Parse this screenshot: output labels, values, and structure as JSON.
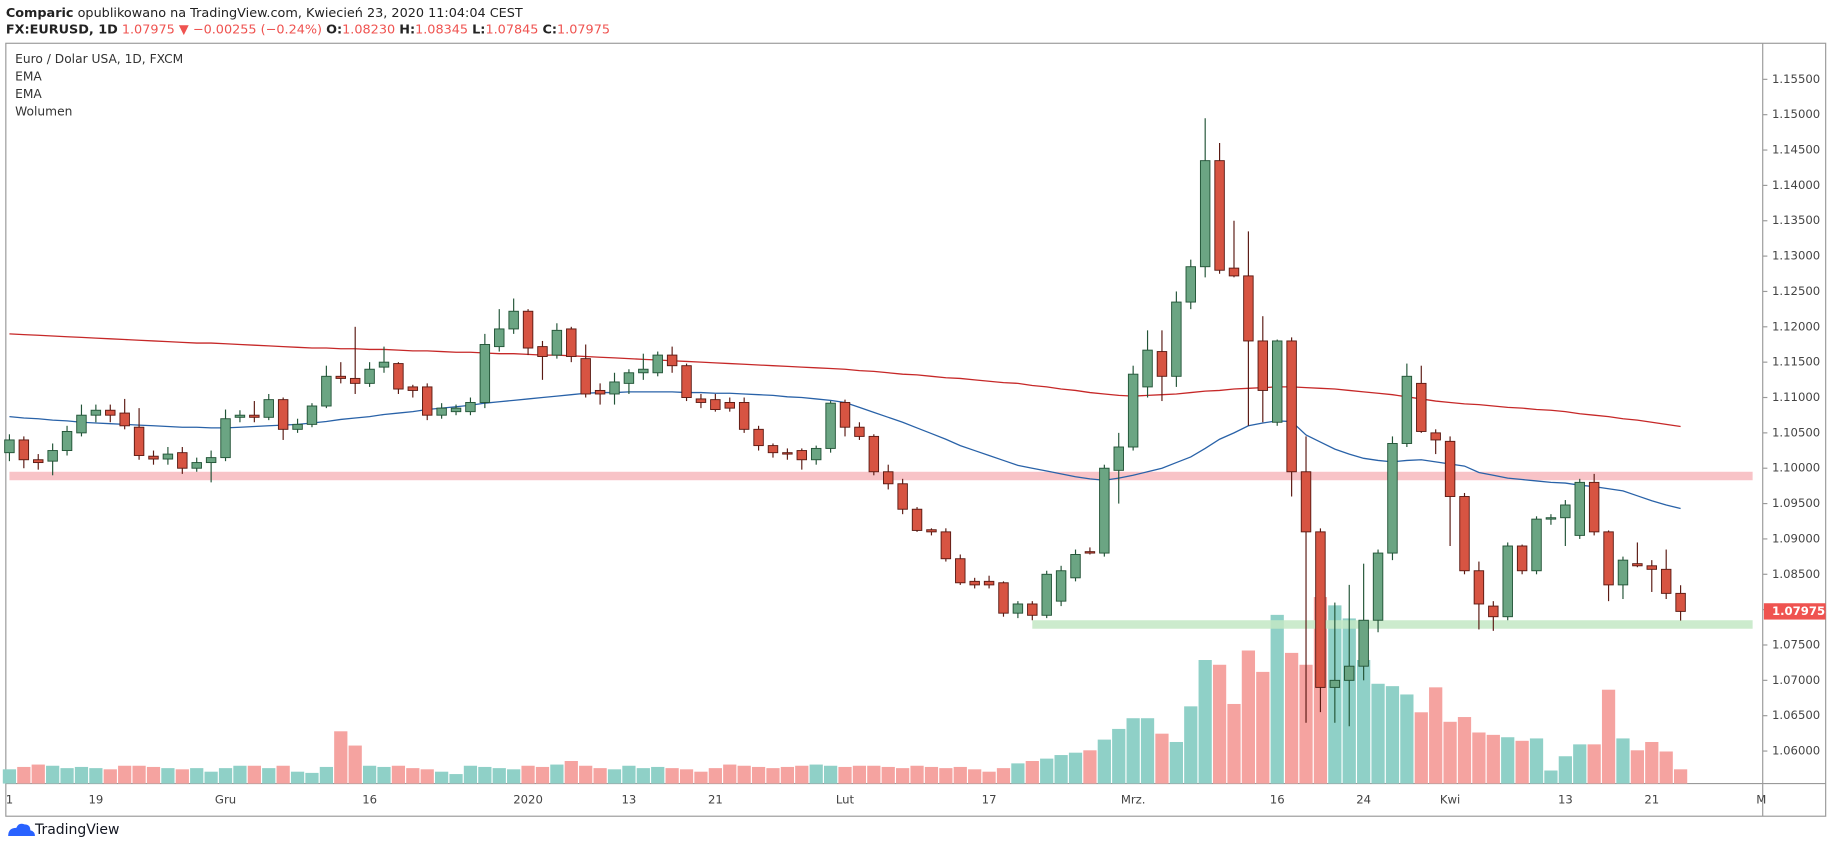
{
  "header": {
    "author": "Comparic",
    "published": "opublikowano na TradingView.com, Kwiecień 23, 2020 11:04:04 CEST",
    "symbol": "FX:EURUSD, 1D",
    "last": "1.07975",
    "arrow": "▼",
    "change": "−0.00255 (−0.24%)",
    "o_label": "O:",
    "o": "1.08230",
    "h_label": "H:",
    "h": "1.08345",
    "l_label": "L:",
    "l": "1.07845",
    "c_label": "C:",
    "c": "1.07975"
  },
  "footer": {
    "brand": "TradingView"
  },
  "chart_data": {
    "type": "candlestick",
    "title": "Euro / Dolar USA, 1D, FXCM",
    "volume_name": "Wolumen",
    "up_color": "#6ba583",
    "down_color": "#d75442",
    "up_border": "#225437",
    "down_border": "#5b1a13",
    "volume_up_color": "#8fd0c7",
    "volume_down_color": "#f5a3a0",
    "xlim": [
      -0.25,
      121.7
    ],
    "ylim": [
      1.0554,
      1.1601
    ],
    "xticks": [
      {
        "value": 0,
        "label": "1"
      },
      {
        "value": 6,
        "label": "19"
      },
      {
        "value": 15,
        "label": "Gru"
      },
      {
        "value": 25,
        "label": "16"
      },
      {
        "value": 36,
        "label": "2020"
      },
      {
        "value": 43,
        "label": "13"
      },
      {
        "value": 49,
        "label": "21"
      },
      {
        "value": 58,
        "label": "Lut"
      },
      {
        "value": 68,
        "label": "17"
      },
      {
        "value": 78,
        "label": "Mrz."
      },
      {
        "value": 88,
        "label": "16"
      },
      {
        "value": 94,
        "label": "24"
      },
      {
        "value": 100,
        "label": "Kwi"
      },
      {
        "value": 108,
        "label": "13"
      },
      {
        "value": 114,
        "label": "21"
      },
      {
        "value": 121.6,
        "label": "M"
      }
    ],
    "yticks": [
      {
        "value": 1.06,
        "label": "1.06000"
      },
      {
        "value": 1.065,
        "label": "1.06500"
      },
      {
        "value": 1.07,
        "label": "1.07000"
      },
      {
        "value": 1.075,
        "label": "1.07500"
      },
      {
        "value": 1.08,
        "label": "1.08000"
      },
      {
        "value": 1.085,
        "label": "1.08500"
      },
      {
        "value": 1.09,
        "label": "1.09000"
      },
      {
        "value": 1.095,
        "label": "1.09500"
      },
      {
        "value": 1.1,
        "label": "1.10000"
      },
      {
        "value": 1.105,
        "label": "1.10500"
      },
      {
        "value": 1.11,
        "label": "1.11000"
      },
      {
        "value": 1.115,
        "label": "1.11500"
      },
      {
        "value": 1.12,
        "label": "1.12000"
      },
      {
        "value": 1.125,
        "label": "1.12500"
      },
      {
        "value": 1.13,
        "label": "1.13000"
      },
      {
        "value": 1.135,
        "label": "1.13500"
      },
      {
        "value": 1.14,
        "label": "1.14000"
      },
      {
        "value": 1.145,
        "label": "1.14500"
      },
      {
        "value": 1.15,
        "label": "1.15000"
      },
      {
        "value": 1.155,
        "label": "1.15500"
      }
    ],
    "zones": [
      {
        "from": 1.0983,
        "to": 1.0995,
        "start": 0,
        "end": 121,
        "color": "#f7b9bd"
      },
      {
        "from": 1.0773,
        "to": 1.0785,
        "start": 71,
        "end": 121,
        "color": "#c3e8c4"
      }
    ],
    "open": [
      1.1022,
      1.104,
      1.1012,
      1.101,
      1.1025,
      1.105,
      1.1075,
      1.1082,
      1.1078,
      1.1058,
      1.1017,
      1.1013,
      1.1022,
      1.1,
      1.1008,
      1.1015,
      1.1072,
      1.1075,
      1.1072,
      1.1097,
      1.1055,
      1.1062,
      1.1088,
      1.113,
      1.1127,
      1.112,
      1.1143,
      1.1148,
      1.1115,
      1.1115,
      1.1075,
      1.108,
      1.108,
      1.1093,
      1.1172,
      1.1197,
      1.1222,
      1.1172,
      1.116,
      1.1197,
      1.1155,
      1.111,
      1.1105,
      1.112,
      1.1135,
      1.1135,
      1.116,
      1.1145,
      1.1098,
      1.1097,
      1.1093,
      1.1093,
      1.1055,
      1.1032,
      1.1022,
      1.1025,
      1.1012,
      1.1028,
      1.1093,
      1.1058,
      1.1045,
      1.0995,
      1.0978,
      1.0942,
      1.0913,
      1.091,
      1.0872,
      1.084,
      1.084,
      1.0838,
      1.0795,
      1.0808,
      1.0792,
      1.0812,
      1.0845,
      1.0882,
      1.088,
      1.0997,
      1.103,
      1.1115,
      1.1165,
      1.113,
      1.1235,
      1.1285,
      1.1435,
      1.1283,
      1.1272,
      1.118,
      1.1065,
      1.118,
      1.0995,
      1.091,
      1.069,
      1.07,
      1.072,
      1.0785,
      1.088,
      1.1035,
      1.112,
      1.105,
      1.1038,
      1.096,
      1.0855,
      1.0805,
      1.079,
      1.089,
      1.0855,
      1.0928,
      1.093,
      1.0905,
      1.098,
      1.091,
      1.0835,
      1.0865,
      1.0862,
      1.0857,
      1.0823
    ],
    "high": [
      1.1048,
      1.1045,
      1.102,
      1.1035,
      1.106,
      1.109,
      1.109,
      1.109,
      1.1098,
      1.1085,
      1.1025,
      1.103,
      1.103,
      1.1015,
      1.1025,
      1.1083,
      1.1082,
      1.1095,
      1.1105,
      1.11,
      1.107,
      1.1092,
      1.1145,
      1.115,
      1.12,
      1.115,
      1.1172,
      1.115,
      1.1118,
      1.112,
      1.1092,
      1.109,
      1.11,
      1.119,
      1.1225,
      1.124,
      1.1225,
      1.118,
      1.1205,
      1.12,
      1.1175,
      1.112,
      1.1135,
      1.114,
      1.1162,
      1.1165,
      1.1172,
      1.1148,
      1.1105,
      1.1105,
      1.11,
      1.11,
      1.106,
      1.1035,
      1.1028,
      1.1028,
      1.1032,
      1.1095,
      1.1097,
      1.1065,
      1.1048,
      1.1005,
      1.0985,
      1.0945,
      1.0915,
      1.0915,
      1.0878,
      1.0845,
      1.0848,
      1.084,
      1.0812,
      1.0812,
      1.0855,
      1.0862,
      1.0885,
      1.0888,
      1.1005,
      1.105,
      1.1145,
      1.1195,
      1.1195,
      1.125,
      1.1295,
      1.1495,
      1.146,
      1.135,
      1.1335,
      1.1215,
      1.1182,
      1.1185,
      1.1045,
      1.0915,
      1.081,
      1.0835,
      1.0865,
      1.0885,
      1.1045,
      1.1148,
      1.1145,
      1.1055,
      1.1045,
      1.0965,
      1.0868,
      1.0812,
      1.0895,
      1.0892,
      1.0932,
      1.0935,
      1.0955,
      1.0985,
      1.0992,
      1.0912,
      1.0875,
      1.0895,
      1.087,
      1.0885,
      1.08345
    ],
    "low": [
      1.101,
      1.1,
      1.0998,
      1.099,
      1.1018,
      1.1045,
      1.1065,
      1.1065,
      1.1055,
      1.1012,
      1.1005,
      1.1005,
      1.0992,
      1.0995,
      1.098,
      1.101,
      1.1065,
      1.1065,
      1.1068,
      1.104,
      1.105,
      1.1058,
      1.1085,
      1.112,
      1.1105,
      1.1115,
      1.1135,
      1.1105,
      1.11,
      1.1068,
      1.107,
      1.1075,
      1.1075,
      1.1085,
      1.1165,
      1.119,
      1.116,
      1.1125,
      1.1155,
      1.115,
      1.11,
      1.109,
      1.109,
      1.1105,
      1.1125,
      1.113,
      1.1135,
      1.1095,
      1.1085,
      1.108,
      1.108,
      1.105,
      1.1025,
      1.1015,
      1.1012,
      1.0998,
      1.1005,
      1.1022,
      1.1045,
      1.104,
      1.099,
      1.097,
      1.0935,
      1.091,
      1.0905,
      1.0868,
      1.0835,
      1.083,
      1.083,
      1.079,
      1.0788,
      1.0785,
      1.0788,
      1.0805,
      1.084,
      1.0878,
      1.0875,
      1.095,
      1.1025,
      1.11,
      1.1095,
      1.1115,
      1.1225,
      1.127,
      1.1275,
      1.127,
      1.106,
      1.1065,
      1.106,
      1.096,
      1.064,
      1.0655,
      1.064,
      1.0635,
      1.07,
      1.0768,
      1.087,
      1.103,
      1.105,
      1.102,
      1.089,
      1.085,
      1.0772,
      1.077,
      1.0785,
      1.085,
      1.085,
      1.092,
      1.089,
      1.09,
      1.0905,
      1.0812,
      1.0815,
      1.086,
      1.0825,
      1.0815,
      1.07845
    ],
    "close": [
      1.104,
      1.1012,
      1.1008,
      1.1025,
      1.1052,
      1.1075,
      1.1082,
      1.1075,
      1.106,
      1.1018,
      1.1013,
      1.102,
      1.1,
      1.1008,
      1.1015,
      1.107,
      1.1075,
      1.1072,
      1.1097,
      1.1055,
      1.1062,
      1.1088,
      1.113,
      1.1127,
      1.112,
      1.114,
      1.115,
      1.1112,
      1.111,
      1.1075,
      1.1085,
      1.1085,
      1.1093,
      1.1175,
      1.1197,
      1.1222,
      1.117,
      1.1158,
      1.1195,
      1.1158,
      1.1105,
      1.1105,
      1.1122,
      1.1135,
      1.114,
      1.116,
      1.1145,
      1.11,
      1.1093,
      1.1083,
      1.1085,
      1.1055,
      1.1032,
      1.1022,
      1.102,
      1.1012,
      1.1028,
      1.1092,
      1.1058,
      1.1045,
      1.0995,
      1.0978,
      1.0942,
      1.0912,
      1.091,
      1.0872,
      1.0838,
      1.0835,
      1.0835,
      1.0795,
      1.0808,
      1.0792,
      1.085,
      1.0855,
      1.0878,
      1.088,
      1.1,
      1.103,
      1.1133,
      1.1167,
      1.113,
      1.1235,
      1.1285,
      1.1435,
      1.128,
      1.1272,
      1.118,
      1.111,
      1.118,
      1.0995,
      1.091,
      1.069,
      1.07,
      1.072,
      1.0785,
      1.088,
      1.1035,
      1.113,
      1.1052,
      1.104,
      1.096,
      1.0855,
      1.0808,
      1.079,
      1.089,
      1.0855,
      1.0928,
      1.093,
      1.0948,
      1.098,
      1.091,
      1.0835,
      1.087,
      1.0862,
      1.0857,
      1.0823,
      1.07975
    ],
    "volume": [
      12,
      14,
      16,
      15,
      13,
      14,
      13,
      12,
      15,
      15,
      14,
      13,
      12,
      13,
      10,
      13,
      15,
      15,
      13,
      15,
      10,
      9,
      14,
      44,
      32,
      15,
      14,
      15,
      13,
      12,
      10,
      8,
      15,
      14,
      13,
      12,
      15,
      14,
      16,
      19,
      15,
      13,
      12,
      15,
      13,
      14,
      13,
      12,
      10,
      13,
      16,
      15,
      14,
      13,
      14,
      15,
      16,
      15,
      14,
      15,
      15,
      14,
      13,
      15,
      14,
      13,
      14,
      12,
      10,
      13,
      17,
      19,
      21,
      24,
      26,
      28,
      37,
      46,
      55,
      55,
      42,
      35,
      65,
      104,
      100,
      67,
      112,
      94,
      142,
      110,
      100,
      157,
      150,
      139,
      104,
      84,
      82,
      75,
      60,
      81,
      52,
      56,
      43,
      41,
      39,
      36,
      38,
      11,
      23,
      33,
      33,
      79,
      38,
      28,
      35,
      27,
      12
    ],
    "ema": [
      {
        "name": "EMA",
        "color": "#2962a8",
        "values": [
          1.1073,
          1.1071,
          1.107,
          1.1068,
          1.1067,
          1.1065,
          1.1064,
          1.1063,
          1.1062,
          1.1061,
          1.106,
          1.1059,
          1.1058,
          1.1058,
          1.1057,
          1.1057,
          1.1058,
          1.1059,
          1.106,
          1.1061,
          1.1062,
          1.1064,
          1.1066,
          1.1069,
          1.1071,
          1.1073,
          1.1076,
          1.1078,
          1.108,
          1.1083,
          1.1085,
          1.1087,
          1.1089,
          1.1092,
          1.1094,
          1.1096,
          1.1098,
          1.11,
          1.1102,
          1.1104,
          1.1106,
          1.1107,
          1.1107,
          1.1108,
          1.1108,
          1.1108,
          1.1108,
          1.1107,
          1.1107,
          1.1106,
          1.1106,
          1.1105,
          1.1104,
          1.1103,
          1.1101,
          1.11,
          1.1098,
          1.1096,
          1.1093,
          1.1086,
          1.1079,
          1.1072,
          1.1065,
          1.1057,
          1.1049,
          1.1041,
          1.1032,
          1.1025,
          1.1018,
          1.1011,
          1.1004,
          1.1,
          1.0996,
          1.0992,
          1.0988,
          1.0985,
          1.0983,
          1.0986,
          1.099,
          1.0995,
          1.1,
          1.1008,
          1.1016,
          1.1028,
          1.1041,
          1.105,
          1.106,
          1.1064,
          1.1067,
          1.1066,
          1.1047,
          1.1037,
          1.1027,
          1.102,
          1.1014,
          1.1011,
          1.1009,
          1.1011,
          1.1012,
          1.1009,
          1.1006,
          1.1003,
          1.0994,
          1.099,
          1.0986,
          1.0984,
          1.0982,
          1.098,
          1.0979,
          1.0976,
          1.0974,
          1.0971,
          1.0968,
          1.0961,
          1.0954,
          1.0948,
          1.0943
        ]
      },
      {
        "name": "EMA",
        "color": "#c62828",
        "values": [
          1.119,
          1.1189,
          1.1188,
          1.1187,
          1.1186,
          1.1185,
          1.1184,
          1.1183,
          1.1182,
          1.1181,
          1.118,
          1.1179,
          1.1178,
          1.1177,
          1.1177,
          1.1176,
          1.1175,
          1.1174,
          1.1173,
          1.1172,
          1.1171,
          1.117,
          1.117,
          1.1169,
          1.1169,
          1.1168,
          1.1168,
          1.1167,
          1.1166,
          1.1166,
          1.1165,
          1.1164,
          1.1164,
          1.1163,
          1.1162,
          1.1162,
          1.1161,
          1.116,
          1.116,
          1.1159,
          1.1158,
          1.1157,
          1.1156,
          1.1155,
          1.1154,
          1.1153,
          1.1152,
          1.1151,
          1.115,
          1.1149,
          1.1148,
          1.1147,
          1.1146,
          1.1145,
          1.1144,
          1.1143,
          1.1142,
          1.1141,
          1.114,
          1.1138,
          1.1137,
          1.1135,
          1.1133,
          1.1132,
          1.113,
          1.1128,
          1.1127,
          1.1125,
          1.1123,
          1.1121,
          1.112,
          1.1117,
          1.1115,
          1.1112,
          1.111,
          1.1107,
          1.1105,
          1.1103,
          1.1102,
          1.1103,
          1.1104,
          1.1105,
          1.1107,
          1.1109,
          1.111,
          1.1112,
          1.1113,
          1.1114,
          1.1115,
          1.1115,
          1.1114,
          1.1113,
          1.1112,
          1.111,
          1.1108,
          1.1106,
          1.1104,
          1.1101,
          1.1098,
          1.1095,
          1.1093,
          1.1091,
          1.109,
          1.1088,
          1.1086,
          1.1085,
          1.1083,
          1.1082,
          1.108,
          1.1077,
          1.1075,
          1.1073,
          1.107,
          1.1068,
          1.1065,
          1.1062,
          1.1059
        ]
      }
    ]
  }
}
